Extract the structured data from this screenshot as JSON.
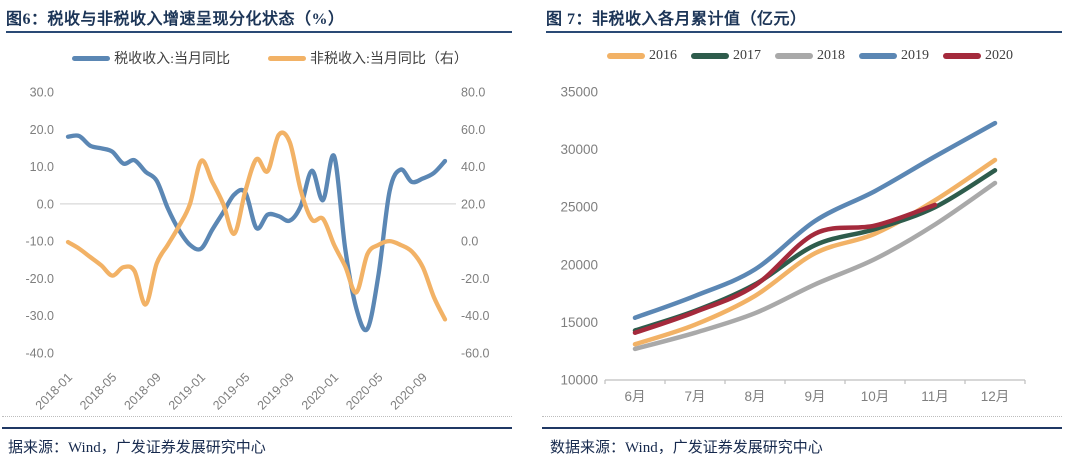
{
  "page": {
    "left_footer": "据来源：Wind，广发证券发展研究中心",
    "right_footer": "数据来源：Wind，广发证券发展研究中心",
    "accent_navy": "#1c3557"
  },
  "chart_data": [
    {
      "type": "line",
      "title": "图6：税收与非税收入增速呈现分化状态（%）",
      "legend_position": "top",
      "grid": "zero-line-only",
      "x": [
        "2018-01",
        "2018-02",
        "2018-03",
        "2018-04",
        "2018-05",
        "2018-06",
        "2018-07",
        "2018-08",
        "2018-09",
        "2018-10",
        "2018-11",
        "2018-12",
        "2019-01",
        "2019-02",
        "2019-03",
        "2019-04",
        "2019-05",
        "2019-06",
        "2019-07",
        "2019-08",
        "2019-09",
        "2019-10",
        "2019-11",
        "2019-12",
        "2020-01",
        "2020-02",
        "2020-03",
        "2020-04",
        "2020-05",
        "2020-06",
        "2020-07",
        "2020-08",
        "2020-09",
        "2020-10",
        "2020-11"
      ],
      "x_shown_ticks": [
        0,
        4,
        8,
        12,
        16,
        20,
        24,
        28,
        32
      ],
      "left_ylim": [
        -40,
        30
      ],
      "left_yticks": [
        30,
        20,
        10,
        0,
        -10,
        -20,
        -30,
        -40
      ],
      "right_ylim": [
        -60,
        80
      ],
      "right_yticks": [
        80,
        60,
        40,
        20,
        0,
        -20,
        -40,
        -60
      ],
      "series": [
        {
          "name": "税收收入:当月同比",
          "axis": "left",
          "color": "#5b87b4",
          "values": [
            18.0,
            18.2,
            15.6,
            14.9,
            14.0,
            10.8,
            11.7,
            8.6,
            6.2,
            -1.2,
            -7.0,
            -11.0,
            -12.0,
            -7.0,
            -2.3,
            2.5,
            3.0,
            -6.5,
            -2.9,
            -3.3,
            -4.5,
            -0.5,
            8.9,
            1.0,
            12.8,
            -12.0,
            -28.0,
            -33.5,
            -19.0,
            3.4,
            9.2,
            5.9,
            6.8,
            8.3,
            11.5
          ]
        },
        {
          "name": "非税收入:当月同比（右）",
          "axis": "right",
          "color": "#f2b266",
          "values": [
            -0.5,
            -4.0,
            -8.5,
            -13.0,
            -18.5,
            -14.0,
            -16.0,
            -34.0,
            -12.0,
            -2.0,
            8.0,
            20.0,
            43.0,
            32.0,
            20.0,
            4.0,
            27.0,
            44.0,
            37.5,
            57.0,
            53.0,
            27.0,
            11.5,
            12.0,
            -2.0,
            -13.5,
            -27.5,
            -7.0,
            -2.0,
            0.0,
            -2.0,
            -5.5,
            -14.0,
            -30.0,
            -42.0
          ]
        }
      ]
    },
    {
      "type": "line",
      "title": "图 7：非税收入各月累计值（亿元）",
      "legend_position": "top",
      "grid": "none",
      "categories": [
        "6月",
        "7月",
        "8月",
        "9月",
        "10月",
        "11月",
        "12月"
      ],
      "ylim": [
        10000,
        35000
      ],
      "yticks": [
        35000,
        30000,
        25000,
        20000,
        15000,
        10000
      ],
      "series": [
        {
          "name": "2016",
          "color": "#f2b266",
          "values": [
            13100,
            14800,
            17300,
            21000,
            22700,
            25600,
            29100
          ]
        },
        {
          "name": "2017",
          "color": "#2e5c4c",
          "values": [
            14300,
            16000,
            18300,
            21700,
            23100,
            25000,
            28200
          ]
        },
        {
          "name": "2018",
          "color": "#a9a9a9",
          "values": [
            12700,
            14100,
            15800,
            18300,
            20500,
            23500,
            27100
          ]
        },
        {
          "name": "2019",
          "color": "#5b87b4",
          "values": [
            15400,
            17300,
            19600,
            23800,
            26400,
            29400,
            32300
          ]
        },
        {
          "name": "2020",
          "color": "#a42a3c",
          "values": [
            14100,
            15900,
            18200,
            22700,
            23400,
            25200
          ]
        }
      ]
    }
  ]
}
